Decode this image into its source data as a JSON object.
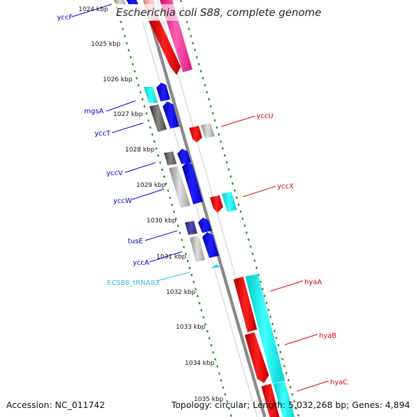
{
  "title": "Escherichia coli S88, complete genome",
  "footer": {
    "accession": "Accession: NC_011742",
    "summary": "Topology: circular; Length: 5,032,268 bp; Genes: 4,894"
  },
  "kbp_ticks": [
    "1024 kbp",
    "1025 kbp",
    "1026 kbp",
    "1027 kbp",
    "1028 kbp",
    "1029 kbp",
    "1030 kbp",
    "1031 kbp",
    "1032 kbp",
    "1033 kbp",
    "1034 kbp",
    "1035 kbp"
  ],
  "left_labels": [
    "yccF",
    "mgsA",
    "yccT",
    "yccV",
    "yccW",
    "tusE",
    "yccA",
    "ECS88_tRNA83"
  ],
  "right_labels": [
    "yccU",
    "yccX",
    "hyaA",
    "hyaB",
    "hyaC"
  ],
  "colors": {
    "forward_gene": "#0000ff",
    "reverse_gene": "#ff0000",
    "trna": "#33ccff",
    "cyan_track": "#00ffff",
    "tick_dots": "#228822",
    "backbone": "#888888"
  }
}
